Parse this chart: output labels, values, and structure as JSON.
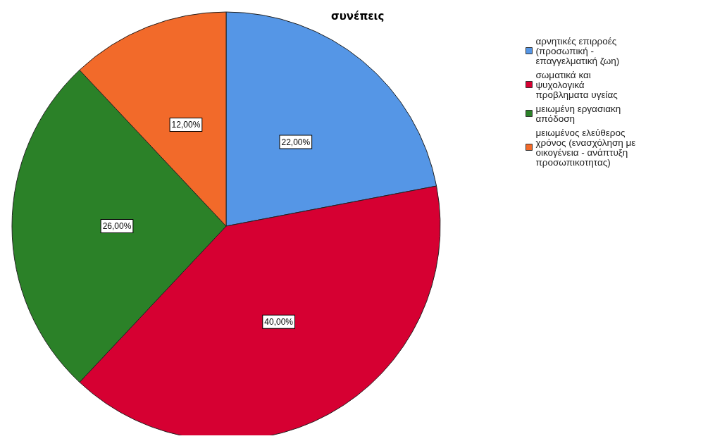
{
  "chart_data": {
    "type": "pie",
    "title": "συνέπεις",
    "categories": [
      "αρνητικές επιρροές (προσωπική - επαγγελματική ζωη)",
      "σωματικά και ψυχολογικά προβληματα υγείας",
      "μειωμένη εργασιακη απόδοση",
      "μειωμένος ελεύθερος χρόνος (ενασχόληση με οικογένεια - ανάπτυξη προσωπικοτητας)"
    ],
    "values": [
      22,
      40,
      26,
      12
    ],
    "colors": [
      "#5596e6",
      "#d60032",
      "#2b8128",
      "#f26a2a"
    ],
    "value_labels": [
      "22,00%",
      "40,00%",
      "26,00%",
      "12,00%"
    ],
    "legend": "top right"
  }
}
